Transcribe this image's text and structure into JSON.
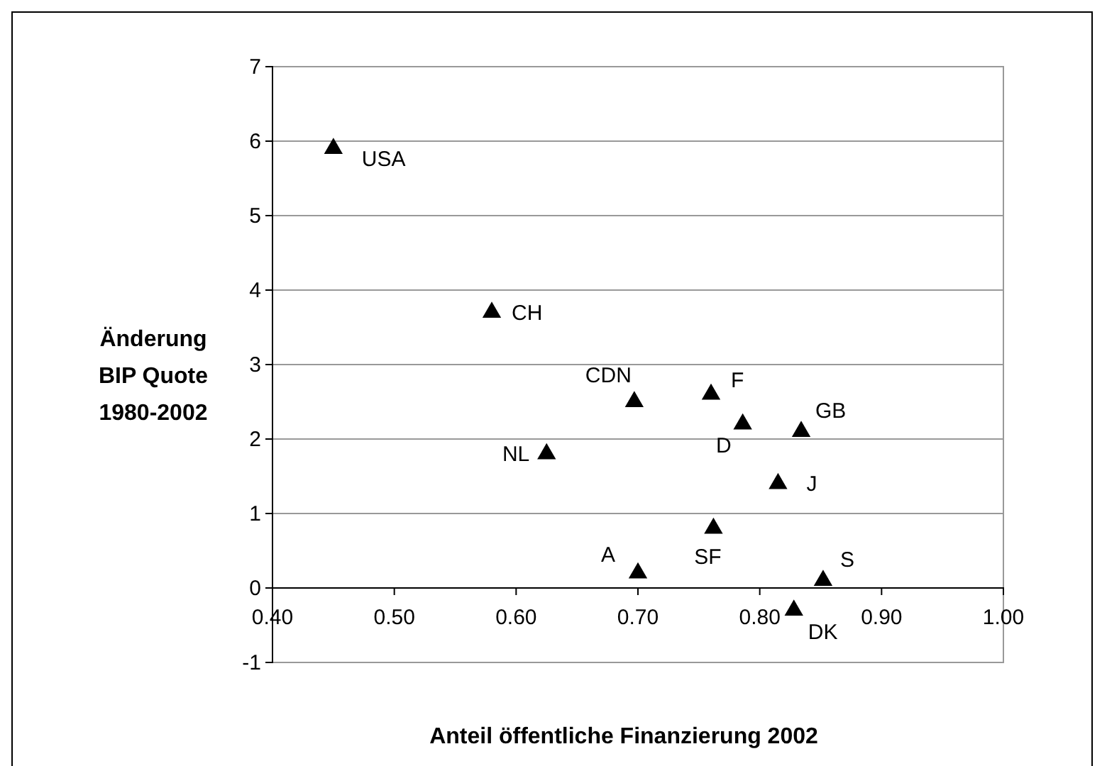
{
  "chart_data": {
    "type": "scatter",
    "xlabel": "Anteil öffentliche Finanzierung 2002",
    "ylabel": "Änderung\nBIP Quote\n1980-2002",
    "x": [
      0.45,
      0.58,
      0.697,
      0.625,
      0.7,
      0.76,
      0.786,
      0.834,
      0.815,
      0.762,
      0.852,
      0.828
    ],
    "series": [
      {
        "color": "#000000",
        "values": [
          5.9,
          3.7,
          2.5,
          1.8,
          0.2,
          2.6,
          2.2,
          2.1,
          1.4,
          0.8,
          0.1,
          -0.3
        ]
      }
    ],
    "annotations": [
      {
        "text": "USA",
        "x": 0.45,
        "y": 5.9
      },
      {
        "text": "CH",
        "x": 0.58,
        "y": 3.7
      },
      {
        "text": "CDN",
        "x": 0.697,
        "y": 2.5
      },
      {
        "text": "NL",
        "x": 0.625,
        "y": 1.8
      },
      {
        "text": "A",
        "x": 0.7,
        "y": 0.2
      },
      {
        "text": "F",
        "x": 0.76,
        "y": 2.6
      },
      {
        "text": "D",
        "x": 0.786,
        "y": 2.2
      },
      {
        "text": "GB",
        "x": 0.834,
        "y": 2.1
      },
      {
        "text": "J",
        "x": 0.815,
        "y": 1.4
      },
      {
        "text": "SF",
        "x": 0.762,
        "y": 0.8
      },
      {
        "text": "S",
        "x": 0.852,
        "y": 0.1
      },
      {
        "text": "DK",
        "x": 0.828,
        "y": -0.3
      }
    ],
    "xlim": [
      0.4,
      1.0
    ],
    "ylim": [
      -1,
      7
    ],
    "xticks": [
      {
        "value": 0.4,
        "label": "0.40"
      },
      {
        "value": 0.5,
        "label": "0.50"
      },
      {
        "value": 0.6,
        "label": "0.60"
      },
      {
        "value": 0.7,
        "label": "0.70"
      },
      {
        "value": 0.8,
        "label": "0.80"
      },
      {
        "value": 0.9,
        "label": "0.90"
      },
      {
        "value": 1.0,
        "label": "1.00"
      }
    ],
    "yticks": [
      -1,
      0,
      1,
      2,
      3,
      4,
      5,
      6,
      7
    ],
    "grid": "y",
    "marker": "triangle"
  }
}
